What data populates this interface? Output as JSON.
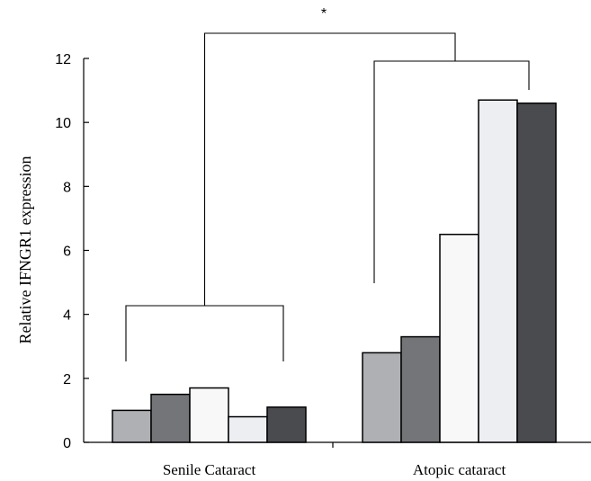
{
  "chart_data": {
    "type": "bar",
    "ylabel": "Relative IFNGR1 expression",
    "ylim": [
      0,
      12
    ],
    "yticks": [
      0,
      2,
      4,
      6,
      8,
      10,
      12
    ],
    "grid": false,
    "groups": [
      {
        "name": "Senile Cataract",
        "values": [
          1.0,
          1.5,
          1.7,
          0.8,
          1.1
        ]
      },
      {
        "name": "Atopic cataract",
        "values": [
          2.8,
          3.3,
          6.5,
          10.7,
          10.6
        ]
      }
    ],
    "bar_colors": [
      "#aeb0b4",
      "#747579",
      "#f8f8f8",
      "#edeef2",
      "#4a4b4f"
    ],
    "annotations": {
      "significance": "*"
    }
  }
}
